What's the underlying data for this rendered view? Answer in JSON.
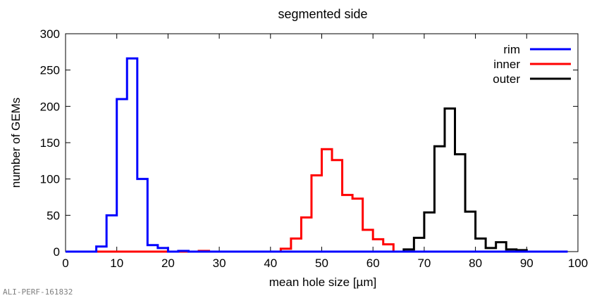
{
  "chart_data": {
    "type": "line",
    "title": "segmented side",
    "xlabel": "mean hole size [µm]",
    "ylabel": "number of GEMs",
    "xlim": [
      0,
      100
    ],
    "ylim": [
      0,
      300
    ],
    "xticks": [
      0,
      10,
      20,
      30,
      40,
      50,
      60,
      70,
      80,
      90,
      100
    ],
    "yticks": [
      0,
      50,
      100,
      150,
      200,
      250,
      300
    ],
    "grid": false,
    "legend_position": "top-right",
    "bin_width": 2,
    "series": [
      {
        "name": "rim",
        "color": "#0000ff",
        "bin_edges": [
          0,
          2,
          4,
          6,
          8,
          10,
          12,
          14,
          16,
          18,
          20,
          22,
          24,
          26,
          28,
          30,
          32,
          34,
          36,
          38,
          40,
          42,
          44,
          46,
          48,
          50,
          52,
          54,
          56,
          58,
          60,
          62,
          64,
          66,
          68,
          70,
          72,
          74,
          76,
          78,
          80,
          82,
          84,
          86,
          88,
          90,
          92,
          94,
          96,
          98
        ],
        "counts": [
          0,
          0,
          0,
          7,
          50,
          210,
          266,
          100,
          9,
          5,
          0,
          1,
          0,
          0,
          0,
          0,
          0,
          0,
          0,
          0,
          0,
          0,
          0,
          0,
          0,
          0,
          0,
          0,
          0,
          0,
          0,
          0,
          0,
          0,
          0,
          0,
          0,
          0,
          0,
          0,
          0,
          0,
          0,
          0,
          0,
          0,
          0,
          0,
          0
        ]
      },
      {
        "name": "inner",
        "color": "#ff0000",
        "bin_edges": [
          0,
          2,
          4,
          6,
          8,
          10,
          12,
          14,
          16,
          18,
          20,
          22,
          24,
          26,
          28,
          30,
          32,
          34,
          36,
          38,
          40,
          42,
          44,
          46,
          48,
          50,
          52,
          54,
          56,
          58,
          60,
          62,
          64,
          66,
          68,
          70,
          72,
          74,
          76,
          78,
          80,
          82,
          84,
          86,
          88,
          90,
          92,
          94,
          96,
          98
        ],
        "counts": [
          0,
          0,
          0,
          0,
          0,
          0,
          0,
          0,
          0,
          0,
          0,
          0,
          0,
          1,
          0,
          0,
          0,
          0,
          0,
          0,
          0,
          4,
          18,
          47,
          105,
          141,
          126,
          78,
          73,
          30,
          17,
          10,
          0,
          0,
          0,
          0,
          0,
          0,
          0,
          0,
          0,
          0,
          0,
          0,
          0,
          0,
          0,
          0,
          0
        ]
      },
      {
        "name": "outer",
        "color": "#000000",
        "bin_edges": [
          0,
          2,
          4,
          6,
          8,
          10,
          12,
          14,
          16,
          18,
          20,
          22,
          24,
          26,
          28,
          30,
          32,
          34,
          36,
          38,
          40,
          42,
          44,
          46,
          48,
          50,
          52,
          54,
          56,
          58,
          60,
          62,
          64,
          66,
          68,
          70,
          72,
          74,
          76,
          78,
          80,
          82,
          84,
          86,
          88,
          90,
          92,
          94,
          96,
          98
        ],
        "counts": [
          0,
          0,
          0,
          0,
          0,
          0,
          0,
          0,
          0,
          0,
          0,
          0,
          0,
          0,
          0,
          0,
          0,
          0,
          0,
          0,
          0,
          0,
          0,
          0,
          0,
          0,
          0,
          0,
          0,
          0,
          0,
          0,
          0,
          3,
          19,
          54,
          145,
          197,
          134,
          55,
          18,
          5,
          13,
          3,
          2,
          0,
          0,
          0,
          0
        ]
      }
    ]
  },
  "footer": {
    "label": "ALI-PERF-161832"
  }
}
